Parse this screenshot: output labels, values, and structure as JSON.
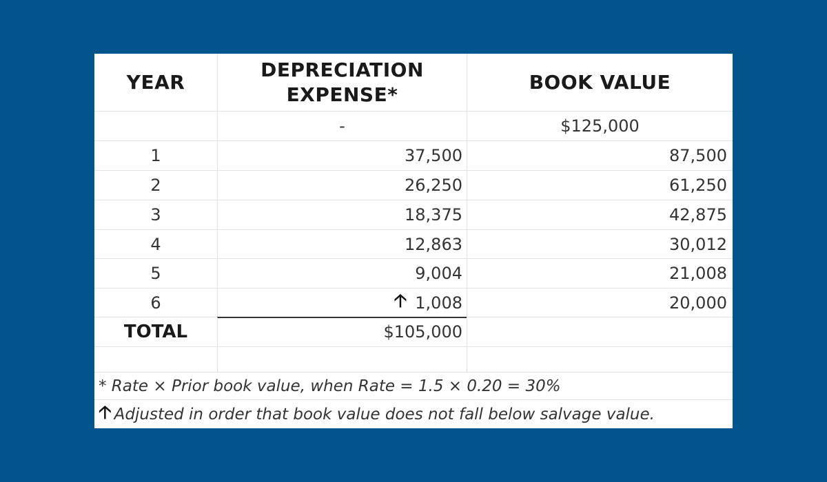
{
  "headers": {
    "year": "YEAR",
    "depreciation_line1": "DEPRECIATION",
    "depreciation_line2": "EXPENSE*",
    "book_value": "BOOK VALUE"
  },
  "initial_row": {
    "depreciation": "-",
    "book_value": "$125,000"
  },
  "rows": [
    {
      "year": "1",
      "depreciation": "37,500",
      "book_value": "87,500"
    },
    {
      "year": "2",
      "depreciation": "26,250",
      "book_value": "61,250"
    },
    {
      "year": "3",
      "depreciation": "18,375",
      "book_value": "42,875"
    },
    {
      "year": "4",
      "depreciation": "12,863",
      "book_value": "30,012"
    },
    {
      "year": "5",
      "depreciation": "9,004",
      "book_value": "21,008"
    },
    {
      "year": "6",
      "depreciation": "1,008",
      "book_value": "20,000"
    }
  ],
  "total": {
    "label": "TOTAL",
    "depreciation": "$105,000"
  },
  "notes": {
    "rate": "* Rate × Prior book value, when Rate = 1.5 × 0.20 = 30%",
    "adjusted": "Adjusted in order that book value does not fall below salvage value."
  },
  "icons": {
    "adjusted_marker": "up-arrow-icon"
  },
  "colors": {
    "background": "#02548d",
    "table": "#ffffff"
  }
}
